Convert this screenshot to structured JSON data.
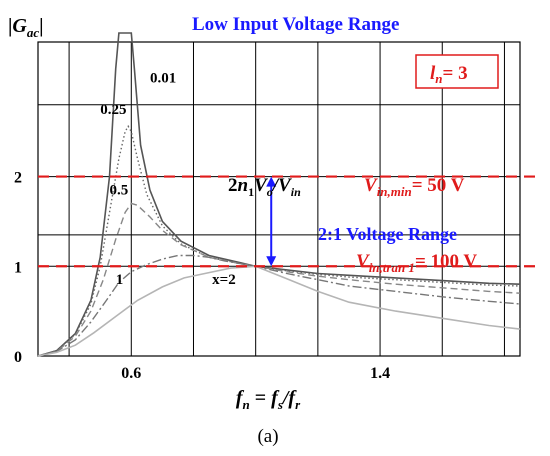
{
  "chart_data": {
    "type": "line",
    "title": "Low Input Voltage Range",
    "ylabel": "|Gac|",
    "xlabel": "fn = fs/fr",
    "subfigure_label": "(a)",
    "xlim": [
      0.3,
      1.85
    ],
    "ylim": [
      0,
      3.5
    ],
    "x_ticks": [
      0.6,
      1.4
    ],
    "y_ticks": [
      0,
      1,
      2
    ],
    "legend_box": {
      "text_main": "l",
      "text_sub": "n",
      "text_value": "= 3",
      "placement": "top-right"
    },
    "reference_lines": [
      {
        "y": 2,
        "main": "V",
        "sub": "in,min",
        "value": "= 50 V"
      },
      {
        "y": 1,
        "main": "V",
        "sub": "in,tran 1",
        "value": "= 100 V"
      }
    ],
    "annotations": {
      "gain_formula": {
        "p1": "2",
        "p2": "n",
        "p3": "1",
        "p4": "V",
        "p5": "o",
        "p6": "/",
        "p7": "V",
        "p8": "in"
      },
      "voltage_range": "2:1 Voltage Range",
      "arrow": {
        "x": 1.05,
        "y_from": 1.0,
        "y_to": 2.0
      }
    },
    "curve_labels": [
      {
        "text": "0.01",
        "x": 0.66,
        "y": 3.05
      },
      {
        "text": "0.25",
        "x": 0.5,
        "y": 2.7
      },
      {
        "text": "0.5",
        "x": 0.53,
        "y": 1.8
      },
      {
        "text": "1",
        "x": 0.55,
        "y": 0.8
      },
      {
        "text": "x=2",
        "x": 0.86,
        "y": 0.8
      }
    ],
    "series": [
      {
        "x_param": 0.01,
        "color": "#555555",
        "dash": "",
        "width": 1.6,
        "points": [
          [
            0.3,
            0.0
          ],
          [
            0.36,
            0.06
          ],
          [
            0.42,
            0.25
          ],
          [
            0.47,
            0.62
          ],
          [
            0.5,
            1.1
          ],
          [
            0.53,
            2.0
          ],
          [
            0.55,
            3.2
          ],
          [
            0.56,
            3.6
          ],
          [
            0.6,
            3.6
          ],
          [
            0.61,
            3.2
          ],
          [
            0.63,
            2.35
          ],
          [
            0.66,
            1.85
          ],
          [
            0.7,
            1.5
          ],
          [
            0.76,
            1.28
          ],
          [
            0.85,
            1.12
          ],
          [
            0.95,
            1.04
          ],
          [
            1.0,
            1.0
          ],
          [
            1.1,
            0.96
          ],
          [
            1.2,
            0.92
          ],
          [
            1.3,
            0.9
          ],
          [
            1.45,
            0.87
          ],
          [
            1.6,
            0.84
          ],
          [
            1.75,
            0.81
          ],
          [
            1.85,
            0.8
          ]
        ]
      },
      {
        "x_param": 0.25,
        "color": "#666666",
        "dash": "1.5,2.5",
        "width": 1.4,
        "points": [
          [
            0.3,
            0.0
          ],
          [
            0.36,
            0.06
          ],
          [
            0.42,
            0.24
          ],
          [
            0.47,
            0.58
          ],
          [
            0.5,
            1.0
          ],
          [
            0.53,
            1.6
          ],
          [
            0.56,
            2.2
          ],
          [
            0.58,
            2.5
          ],
          [
            0.59,
            2.56
          ],
          [
            0.6,
            2.5
          ],
          [
            0.62,
            2.2
          ],
          [
            0.65,
            1.8
          ],
          [
            0.7,
            1.45
          ],
          [
            0.76,
            1.25
          ],
          [
            0.85,
            1.1
          ],
          [
            0.95,
            1.03
          ],
          [
            1.0,
            1.0
          ],
          [
            1.1,
            0.95
          ],
          [
            1.2,
            0.91
          ],
          [
            1.3,
            0.88
          ],
          [
            1.45,
            0.85
          ],
          [
            1.6,
            0.82
          ],
          [
            1.75,
            0.79
          ],
          [
            1.85,
            0.78
          ]
        ]
      },
      {
        "x_param": 0.5,
        "color": "#888888",
        "dash": "7,4",
        "width": 1.4,
        "points": [
          [
            0.3,
            0.0
          ],
          [
            0.36,
            0.05
          ],
          [
            0.42,
            0.22
          ],
          [
            0.47,
            0.5
          ],
          [
            0.51,
            0.85
          ],
          [
            0.55,
            1.3
          ],
          [
            0.58,
            1.6
          ],
          [
            0.6,
            1.7
          ],
          [
            0.62,
            1.68
          ],
          [
            0.66,
            1.55
          ],
          [
            0.7,
            1.4
          ],
          [
            0.76,
            1.24
          ],
          [
            0.85,
            1.1
          ],
          [
            0.95,
            1.03
          ],
          [
            1.0,
            1.0
          ],
          [
            1.1,
            0.94
          ],
          [
            1.2,
            0.89
          ],
          [
            1.3,
            0.85
          ],
          [
            1.45,
            0.8
          ],
          [
            1.6,
            0.76
          ],
          [
            1.75,
            0.72
          ],
          [
            1.85,
            0.7
          ]
        ]
      },
      {
        "x_param": 1,
        "color": "#777777",
        "dash": "9,3,2,3",
        "width": 1.4,
        "points": [
          [
            0.3,
            0.0
          ],
          [
            0.36,
            0.05
          ],
          [
            0.42,
            0.18
          ],
          [
            0.47,
            0.38
          ],
          [
            0.52,
            0.62
          ],
          [
            0.56,
            0.82
          ],
          [
            0.6,
            0.94
          ],
          [
            0.65,
            1.02
          ],
          [
            0.7,
            1.08
          ],
          [
            0.75,
            1.12
          ],
          [
            0.8,
            1.12
          ],
          [
            0.85,
            1.1
          ],
          [
            0.9,
            1.06
          ],
          [
            0.95,
            1.03
          ],
          [
            1.0,
            1.0
          ],
          [
            1.1,
            0.92
          ],
          [
            1.2,
            0.85
          ],
          [
            1.3,
            0.78
          ],
          [
            1.45,
            0.72
          ],
          [
            1.6,
            0.66
          ],
          [
            1.75,
            0.61
          ],
          [
            1.85,
            0.58
          ]
        ]
      },
      {
        "x_param": 2,
        "color": "#b5b5b5",
        "dash": "",
        "width": 1.6,
        "points": [
          [
            0.3,
            0.0
          ],
          [
            0.36,
            0.04
          ],
          [
            0.42,
            0.12
          ],
          [
            0.48,
            0.26
          ],
          [
            0.55,
            0.44
          ],
          [
            0.62,
            0.62
          ],
          [
            0.7,
            0.77
          ],
          [
            0.77,
            0.87
          ],
          [
            0.85,
            0.93
          ],
          [
            0.92,
            0.98
          ],
          [
            1.0,
            1.0
          ],
          [
            1.1,
            0.86
          ],
          [
            1.2,
            0.72
          ],
          [
            1.3,
            0.6
          ],
          [
            1.45,
            0.5
          ],
          [
            1.6,
            0.42
          ],
          [
            1.75,
            0.34
          ],
          [
            1.85,
            0.3
          ]
        ]
      }
    ]
  }
}
